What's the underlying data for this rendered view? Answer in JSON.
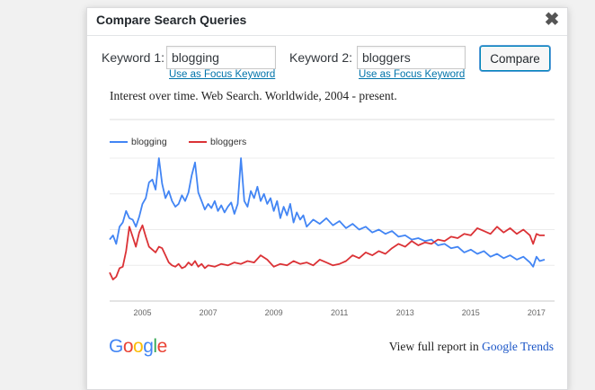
{
  "dialog": {
    "title": "Compare Search Queries",
    "close_glyph": "✖"
  },
  "keywords": {
    "label1": "Keyword 1:",
    "value1": "blogging",
    "label2": "Keyword 2:",
    "value2": "bloggers",
    "focus_link": "Use as Focus Keyword",
    "compare_label": "Compare"
  },
  "chart_data": {
    "type": "line",
    "title": "Interest over time. Web Search. Worldwide, 2004 - present.",
    "x_ticks": [
      "2005",
      "2007",
      "2009",
      "2011",
      "2013",
      "2015",
      "2017"
    ],
    "xlim": [
      2004.0,
      2017.25
    ],
    "ylim": [
      0,
      100
    ],
    "grid": true,
    "legend_position": "top-left",
    "series": [
      {
        "name": "blogging",
        "color": "#4285f4",
        "points": [
          [
            2004.0,
            43
          ],
          [
            2004.1,
            46
          ],
          [
            2004.2,
            40
          ],
          [
            2004.3,
            52
          ],
          [
            2004.4,
            55
          ],
          [
            2004.5,
            63
          ],
          [
            2004.6,
            58
          ],
          [
            2004.7,
            57
          ],
          [
            2004.8,
            52
          ],
          [
            2004.9,
            59
          ],
          [
            2005.0,
            68
          ],
          [
            2005.1,
            72
          ],
          [
            2005.2,
            83
          ],
          [
            2005.3,
            85
          ],
          [
            2005.4,
            78
          ],
          [
            2005.5,
            100
          ],
          [
            2005.6,
            82
          ],
          [
            2005.7,
            72
          ],
          [
            2005.8,
            77
          ],
          [
            2005.9,
            70
          ],
          [
            2006.0,
            66
          ],
          [
            2006.1,
            68
          ],
          [
            2006.2,
            74
          ],
          [
            2006.3,
            70
          ],
          [
            2006.4,
            76
          ],
          [
            2006.5,
            88
          ],
          [
            2006.6,
            97
          ],
          [
            2006.7,
            76
          ],
          [
            2006.8,
            70
          ],
          [
            2006.9,
            64
          ],
          [
            2007.0,
            68
          ],
          [
            2007.1,
            65
          ],
          [
            2007.2,
            70
          ],
          [
            2007.3,
            63
          ],
          [
            2007.4,
            67
          ],
          [
            2007.5,
            62
          ],
          [
            2007.6,
            66
          ],
          [
            2007.7,
            69
          ],
          [
            2007.8,
            61
          ],
          [
            2007.9,
            68
          ],
          [
            2008.0,
            100
          ],
          [
            2008.1,
            70
          ],
          [
            2008.2,
            66
          ],
          [
            2008.3,
            77
          ],
          [
            2008.4,
            72
          ],
          [
            2008.5,
            80
          ],
          [
            2008.6,
            70
          ],
          [
            2008.7,
            75
          ],
          [
            2008.8,
            68
          ],
          [
            2008.9,
            72
          ],
          [
            2009.0,
            63
          ],
          [
            2009.1,
            70
          ],
          [
            2009.2,
            58
          ],
          [
            2009.3,
            66
          ],
          [
            2009.4,
            60
          ],
          [
            2009.5,
            68
          ],
          [
            2009.6,
            55
          ],
          [
            2009.7,
            62
          ],
          [
            2009.8,
            57
          ],
          [
            2009.9,
            60
          ],
          [
            2010.0,
            52
          ],
          [
            2010.2,
            57
          ],
          [
            2010.4,
            54
          ],
          [
            2010.6,
            58
          ],
          [
            2010.8,
            53
          ],
          [
            2011.0,
            56
          ],
          [
            2011.2,
            51
          ],
          [
            2011.4,
            54
          ],
          [
            2011.6,
            50
          ],
          [
            2011.8,
            52
          ],
          [
            2012.0,
            48
          ],
          [
            2012.2,
            50
          ],
          [
            2012.4,
            47
          ],
          [
            2012.6,
            49
          ],
          [
            2012.8,
            45
          ],
          [
            2013.0,
            46
          ],
          [
            2013.2,
            43
          ],
          [
            2013.4,
            44
          ],
          [
            2013.6,
            42
          ],
          [
            2013.8,
            43
          ],
          [
            2014.0,
            39
          ],
          [
            2014.2,
            40
          ],
          [
            2014.4,
            37
          ],
          [
            2014.6,
            38
          ],
          [
            2014.8,
            34
          ],
          [
            2015.0,
            36
          ],
          [
            2015.2,
            33
          ],
          [
            2015.4,
            35
          ],
          [
            2015.6,
            31
          ],
          [
            2015.8,
            33
          ],
          [
            2016.0,
            30
          ],
          [
            2016.2,
            32
          ],
          [
            2016.4,
            29
          ],
          [
            2016.6,
            31
          ],
          [
            2016.8,
            27
          ],
          [
            2016.9,
            24
          ],
          [
            2017.0,
            31
          ],
          [
            2017.1,
            28
          ],
          [
            2017.25,
            29
          ]
        ]
      },
      {
        "name": "bloggers",
        "color": "#db3236",
        "points": [
          [
            2004.0,
            20
          ],
          [
            2004.1,
            15
          ],
          [
            2004.2,
            17
          ],
          [
            2004.3,
            23
          ],
          [
            2004.4,
            24
          ],
          [
            2004.5,
            35
          ],
          [
            2004.6,
            52
          ],
          [
            2004.7,
            45
          ],
          [
            2004.8,
            38
          ],
          [
            2004.9,
            48
          ],
          [
            2005.0,
            53
          ],
          [
            2005.1,
            45
          ],
          [
            2005.2,
            38
          ],
          [
            2005.3,
            36
          ],
          [
            2005.4,
            34
          ],
          [
            2005.5,
            38
          ],
          [
            2005.6,
            37
          ],
          [
            2005.7,
            32
          ],
          [
            2005.8,
            27
          ],
          [
            2005.9,
            25
          ],
          [
            2006.0,
            24
          ],
          [
            2006.1,
            26
          ],
          [
            2006.2,
            23
          ],
          [
            2006.3,
            24
          ],
          [
            2006.4,
            27
          ],
          [
            2006.5,
            25
          ],
          [
            2006.6,
            28
          ],
          [
            2006.7,
            24
          ],
          [
            2006.8,
            26
          ],
          [
            2006.9,
            23
          ],
          [
            2007.0,
            25
          ],
          [
            2007.2,
            24
          ],
          [
            2007.4,
            26
          ],
          [
            2007.6,
            25
          ],
          [
            2007.8,
            27
          ],
          [
            2008.0,
            26
          ],
          [
            2008.2,
            28
          ],
          [
            2008.4,
            27
          ],
          [
            2008.6,
            32
          ],
          [
            2008.8,
            29
          ],
          [
            2009.0,
            24
          ],
          [
            2009.2,
            26
          ],
          [
            2009.4,
            25
          ],
          [
            2009.6,
            28
          ],
          [
            2009.8,
            26
          ],
          [
            2010.0,
            27
          ],
          [
            2010.2,
            25
          ],
          [
            2010.4,
            29
          ],
          [
            2010.6,
            27
          ],
          [
            2010.8,
            25
          ],
          [
            2011.0,
            26
          ],
          [
            2011.2,
            28
          ],
          [
            2011.4,
            32
          ],
          [
            2011.6,
            30
          ],
          [
            2011.8,
            34
          ],
          [
            2012.0,
            32
          ],
          [
            2012.2,
            35
          ],
          [
            2012.4,
            33
          ],
          [
            2012.6,
            37
          ],
          [
            2012.8,
            40
          ],
          [
            2013.0,
            38
          ],
          [
            2013.2,
            42
          ],
          [
            2013.4,
            39
          ],
          [
            2013.6,
            41
          ],
          [
            2013.8,
            40
          ],
          [
            2014.0,
            43
          ],
          [
            2014.2,
            42
          ],
          [
            2014.4,
            45
          ],
          [
            2014.6,
            44
          ],
          [
            2014.8,
            47
          ],
          [
            2015.0,
            46
          ],
          [
            2015.2,
            51
          ],
          [
            2015.4,
            49
          ],
          [
            2015.6,
            47
          ],
          [
            2015.8,
            52
          ],
          [
            2016.0,
            48
          ],
          [
            2016.2,
            51
          ],
          [
            2016.4,
            47
          ],
          [
            2016.6,
            50
          ],
          [
            2016.8,
            46
          ],
          [
            2016.9,
            40
          ],
          [
            2017.0,
            47
          ],
          [
            2017.1,
            46
          ],
          [
            2017.25,
            46
          ]
        ]
      }
    ]
  },
  "footer": {
    "logo_letters": [
      {
        "ch": "G",
        "color": "#4285f4"
      },
      {
        "ch": "o",
        "color": "#ea4335"
      },
      {
        "ch": "o",
        "color": "#fbbc05"
      },
      {
        "ch": "g",
        "color": "#4285f4"
      },
      {
        "ch": "l",
        "color": "#34a853"
      },
      {
        "ch": "e",
        "color": "#ea4335"
      }
    ],
    "report_prefix": "View full report in",
    "report_link": "Google Trends"
  }
}
